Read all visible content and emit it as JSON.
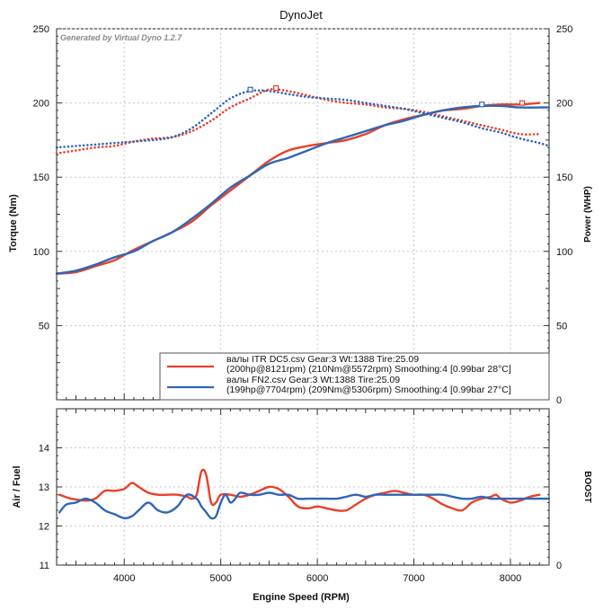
{
  "chart_data": [
    {
      "type": "line",
      "title": "DynoJet",
      "watermark": "Generated by Virtual Dyno 1.2.7",
      "xlabel": "",
      "ylabel": "Torque (Nm)",
      "ylabel_right": "Power (WHP)",
      "xlim": [
        3300,
        8400
      ],
      "ylim": [
        0,
        250
      ],
      "ylim_right": [
        0,
        250
      ],
      "yticks": [
        50,
        100,
        150,
        200,
        250
      ],
      "yticks_right": [
        0,
        50,
        100,
        150,
        200,
        250
      ],
      "ytick_labels": [
        "50",
        "100",
        "150",
        "200",
        "250"
      ],
      "ytick_labels_right": [
        "0",
        "50",
        "100",
        "150",
        "200",
        "250"
      ],
      "xticks": [
        4000,
        5000,
        6000,
        7000,
        8000
      ],
      "grid": true,
      "legend_position": "bottom-right",
      "legend": [
        {
          "color": "#e8402a",
          "line1": "валы ITR DC5.csv Gear:3 Wt:1388 Tire:25.09",
          "line2": "(200hp@8121rpm) (210Nm@5572rpm) Smoothing:4 [0.99bar 28°C]"
        },
        {
          "color": "#2f66b8",
          "line1": "валы FN2.csv Gear:3 Wt:1388 Tire:25.09",
          "line2": "(199hp@7704rpm) (209Nm@5306rpm) Smoothing:4 [0.99bar 27°C]"
        }
      ],
      "series": [
        {
          "group": "ITR",
          "kind": "torque",
          "color": "#e8402a",
          "dotted": false,
          "x": [
            3300,
            3500,
            3700,
            3900,
            4100,
            4300,
            4500,
            4700,
            4900,
            5100,
            5300,
            5500,
            5700,
            5900,
            6100,
            6300,
            6500,
            6700,
            6900,
            7100,
            7300,
            7500,
            7700,
            7900,
            8100,
            8300
          ],
          "y": [
            85,
            86,
            90,
            94,
            101,
            107,
            113,
            120,
            131,
            141,
            151,
            161,
            168,
            171,
            173,
            175,
            179,
            185,
            189,
            192,
            195,
            196,
            198,
            199,
            199,
            200
          ]
        },
        {
          "group": "ITR",
          "kind": "power",
          "color": "#e8402a",
          "dotted": true,
          "x": [
            3300,
            3500,
            3700,
            3900,
            4100,
            4300,
            4500,
            4700,
            4900,
            5100,
            5300,
            5500,
            5700,
            5900,
            6100,
            6300,
            6500,
            6700,
            6900,
            7100,
            7300,
            7500,
            7700,
            7900,
            8100,
            8300
          ],
          "y": [
            166,
            168,
            170,
            171,
            174,
            176,
            177,
            181,
            188,
            197,
            203,
            209,
            208,
            205,
            202,
            200,
            199,
            197,
            196,
            194,
            191,
            188,
            185,
            182,
            179,
            179
          ]
        },
        {
          "group": "FN2",
          "kind": "torque",
          "color": "#2f66b8",
          "dotted": false,
          "x": [
            3300,
            3500,
            3700,
            3900,
            4100,
            4300,
            4500,
            4700,
            4900,
            5100,
            5300,
            5500,
            5700,
            5900,
            6100,
            6300,
            6500,
            6700,
            6900,
            7100,
            7300,
            7500,
            7700,
            7900,
            8100,
            8300,
            8400
          ],
          "y": [
            85,
            87,
            91,
            96,
            100,
            107,
            113,
            122,
            132,
            143,
            151,
            159,
            163,
            168,
            173,
            177,
            181,
            185,
            188,
            192,
            195,
            197,
            198,
            198,
            197,
            197,
            197
          ]
        },
        {
          "group": "FN2",
          "kind": "power",
          "color": "#2f66b8",
          "dotted": true,
          "x": [
            3300,
            3500,
            3700,
            3900,
            4100,
            4300,
            4500,
            4700,
            4900,
            5100,
            5300,
            5500,
            5700,
            5900,
            6100,
            6300,
            6500,
            6700,
            6900,
            7100,
            7300,
            7500,
            7700,
            7900,
            8100,
            8300,
            8400
          ],
          "y": [
            170,
            171,
            172,
            173,
            174,
            175,
            177,
            183,
            193,
            203,
            208,
            208,
            206,
            204,
            203,
            202,
            200,
            198,
            196,
            193,
            190,
            187,
            183,
            180,
            176,
            173,
            171
          ]
        }
      ],
      "markers": [
        {
          "color": "#2f66b8",
          "x": 5306,
          "y": 209
        },
        {
          "color": "#e8402a",
          "x": 5572,
          "y": 210
        },
        {
          "color": "#2f66b8",
          "x": 7704,
          "y": 199
        },
        {
          "color": "#e8402a",
          "x": 8121,
          "y": 200
        }
      ]
    },
    {
      "type": "line",
      "title": "",
      "xlabel": "Engine Speed (RPM)",
      "ylabel": "Air / Fuel",
      "ylabel_right": "BOOST",
      "xlim": [
        3300,
        8400
      ],
      "ylim": [
        11,
        15
      ],
      "yticks": [
        11,
        12,
        13,
        14
      ],
      "ytick_labels": [
        "11",
        "12",
        "13",
        "14"
      ],
      "ytick_labels_right": [
        "0"
      ],
      "xticks": [
        4000,
        5000,
        6000,
        7000,
        8000
      ],
      "xtick_labels": [
        "4000",
        "5000",
        "6000",
        "7000",
        "8000"
      ],
      "grid": true,
      "series": [
        {
          "group": "ITR",
          "color": "#e8402a",
          "x": [
            3330,
            3450,
            3600,
            3700,
            3800,
            3900,
            4000,
            4080,
            4150,
            4250,
            4350,
            4450,
            4550,
            4650,
            4700,
            4750,
            4800,
            4850,
            4900,
            4950,
            5000,
            5100,
            5200,
            5300,
            5400,
            5500,
            5600,
            5700,
            5800,
            5900,
            6000,
            6100,
            6200,
            6300,
            6400,
            6500,
            6600,
            6700,
            6800,
            6900,
            7000,
            7100,
            7200,
            7300,
            7400,
            7500,
            7600,
            7700,
            7800,
            7850,
            7900,
            8000,
            8100,
            8200,
            8300
          ],
          "y": [
            12.8,
            12.7,
            12.65,
            12.7,
            12.9,
            12.9,
            12.95,
            13.1,
            13.0,
            12.85,
            12.8,
            12.8,
            12.8,
            12.75,
            12.7,
            12.8,
            13.4,
            13.3,
            12.6,
            12.6,
            12.8,
            12.8,
            12.75,
            12.8,
            12.9,
            13.0,
            12.95,
            12.75,
            12.5,
            12.45,
            12.5,
            12.45,
            12.4,
            12.4,
            12.55,
            12.7,
            12.8,
            12.85,
            12.9,
            12.85,
            12.8,
            12.8,
            12.7,
            12.55,
            12.45,
            12.4,
            12.6,
            12.7,
            12.75,
            12.8,
            12.7,
            12.6,
            12.65,
            12.75,
            12.8
          ]
        },
        {
          "group": "FN2",
          "color": "#2f66b8",
          "x": [
            3330,
            3400,
            3500,
            3600,
            3700,
            3800,
            3900,
            4000,
            4080,
            4150,
            4250,
            4350,
            4450,
            4550,
            4650,
            4750,
            4800,
            4850,
            4900,
            4950,
            5000,
            5050,
            5100,
            5150,
            5200,
            5300,
            5400,
            5500,
            5600,
            5700,
            5800,
            5900,
            6000,
            6100,
            6200,
            6300,
            6400,
            6500,
            6600,
            6700,
            6800,
            6900,
            7000,
            7100,
            7200,
            7300,
            7400,
            7500,
            7600,
            7700,
            7800,
            7900,
            8000,
            8100,
            8200,
            8300,
            8400
          ],
          "y": [
            12.35,
            12.55,
            12.6,
            12.7,
            12.6,
            12.4,
            12.3,
            12.2,
            12.25,
            12.4,
            12.6,
            12.4,
            12.35,
            12.5,
            12.8,
            12.7,
            12.5,
            12.35,
            12.2,
            12.25,
            12.6,
            12.8,
            12.6,
            12.7,
            12.85,
            12.8,
            12.8,
            12.85,
            12.8,
            12.8,
            12.7,
            12.7,
            12.7,
            12.7,
            12.7,
            12.75,
            12.8,
            12.75,
            12.8,
            12.8,
            12.8,
            12.8,
            12.8,
            12.8,
            12.8,
            12.8,
            12.75,
            12.7,
            12.7,
            12.75,
            12.7,
            12.7,
            12.7,
            12.7,
            12.7,
            12.7,
            12.7
          ]
        }
      ]
    }
  ]
}
